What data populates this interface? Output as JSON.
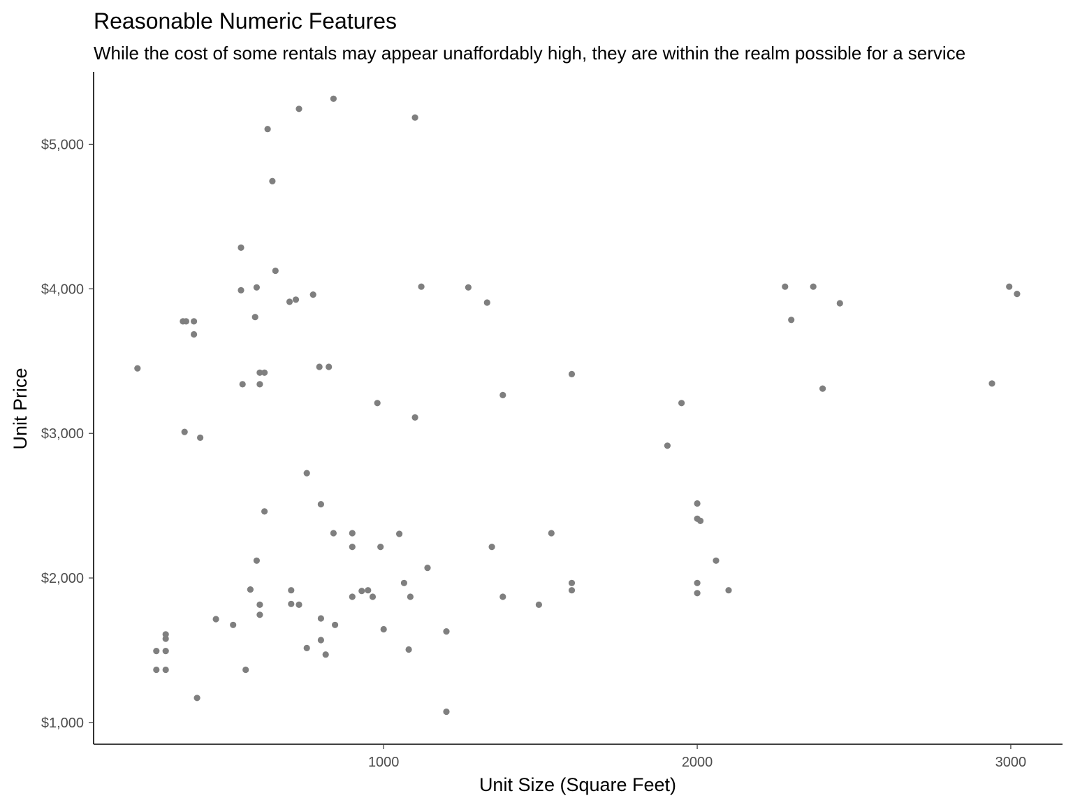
{
  "chart_data": {
    "type": "scatter",
    "title": "Reasonable Numeric Features",
    "subtitle": "While the cost of some rentals may appear unaffordably high, they are within the realm possible for a service",
    "xlabel": "Unit Size (Square Feet)",
    "ylabel": "Unit Price",
    "xlim": [
      75,
      3165
    ],
    "ylim": [
      850,
      5500
    ],
    "x_ticks": [
      1000,
      2000,
      3000
    ],
    "x_tick_labels": [
      "1000",
      "2000",
      "3000"
    ],
    "y_ticks": [
      1000,
      2000,
      3000,
      4000,
      5000
    ],
    "y_tick_labels": [
      "$1,000",
      "$2,000",
      "$3,000",
      "$4,000",
      "$5,000"
    ],
    "grid": false,
    "point_color": "#7f7f7f",
    "points": [
      {
        "x": 215,
        "y": 3450
      },
      {
        "x": 275,
        "y": 1495
      },
      {
        "x": 275,
        "y": 1365
      },
      {
        "x": 305,
        "y": 1610
      },
      {
        "x": 305,
        "y": 1580
      },
      {
        "x": 305,
        "y": 1495
      },
      {
        "x": 305,
        "y": 1365
      },
      {
        "x": 360,
        "y": 3775
      },
      {
        "x": 365,
        "y": 3010
      },
      {
        "x": 370,
        "y": 3775
      },
      {
        "x": 395,
        "y": 3775
      },
      {
        "x": 395,
        "y": 3685
      },
      {
        "x": 405,
        "y": 1170
      },
      {
        "x": 415,
        "y": 2970
      },
      {
        "x": 465,
        "y": 1715
      },
      {
        "x": 520,
        "y": 1675
      },
      {
        "x": 545,
        "y": 4285
      },
      {
        "x": 545,
        "y": 3990
      },
      {
        "x": 550,
        "y": 3340
      },
      {
        "x": 560,
        "y": 1365
      },
      {
        "x": 575,
        "y": 1920
      },
      {
        "x": 590,
        "y": 3805
      },
      {
        "x": 595,
        "y": 4010
      },
      {
        "x": 595,
        "y": 2120
      },
      {
        "x": 605,
        "y": 3420
      },
      {
        "x": 605,
        "y": 3340
      },
      {
        "x": 605,
        "y": 1815
      },
      {
        "x": 605,
        "y": 1745
      },
      {
        "x": 620,
        "y": 3420
      },
      {
        "x": 620,
        "y": 2460
      },
      {
        "x": 630,
        "y": 5105
      },
      {
        "x": 645,
        "y": 4745
      },
      {
        "x": 655,
        "y": 4125
      },
      {
        "x": 700,
        "y": 3910
      },
      {
        "x": 705,
        "y": 1915
      },
      {
        "x": 705,
        "y": 1820
      },
      {
        "x": 720,
        "y": 3925
      },
      {
        "x": 730,
        "y": 5245
      },
      {
        "x": 730,
        "y": 1815
      },
      {
        "x": 755,
        "y": 2725
      },
      {
        "x": 755,
        "y": 1515
      },
      {
        "x": 775,
        "y": 3960
      },
      {
        "x": 795,
        "y": 3460
      },
      {
        "x": 800,
        "y": 2510
      },
      {
        "x": 800,
        "y": 1720
      },
      {
        "x": 800,
        "y": 1570
      },
      {
        "x": 815,
        "y": 1470
      },
      {
        "x": 825,
        "y": 3460
      },
      {
        "x": 840,
        "y": 5315
      },
      {
        "x": 840,
        "y": 2310
      },
      {
        "x": 845,
        "y": 1675
      },
      {
        "x": 900,
        "y": 2310
      },
      {
        "x": 900,
        "y": 2215
      },
      {
        "x": 900,
        "y": 1870
      },
      {
        "x": 930,
        "y": 1910
      },
      {
        "x": 950,
        "y": 1915
      },
      {
        "x": 965,
        "y": 1870
      },
      {
        "x": 980,
        "y": 3210
      },
      {
        "x": 990,
        "y": 2215
      },
      {
        "x": 1000,
        "y": 1645
      },
      {
        "x": 1050,
        "y": 2305
      },
      {
        "x": 1065,
        "y": 1965
      },
      {
        "x": 1080,
        "y": 1505
      },
      {
        "x": 1085,
        "y": 1870
      },
      {
        "x": 1100,
        "y": 5185
      },
      {
        "x": 1100,
        "y": 3110
      },
      {
        "x": 1120,
        "y": 4015
      },
      {
        "x": 1140,
        "y": 2070
      },
      {
        "x": 1200,
        "y": 1630
      },
      {
        "x": 1200,
        "y": 1075
      },
      {
        "x": 1270,
        "y": 4010
      },
      {
        "x": 1330,
        "y": 3905
      },
      {
        "x": 1345,
        "y": 2215
      },
      {
        "x": 1380,
        "y": 3265
      },
      {
        "x": 1380,
        "y": 1870
      },
      {
        "x": 1495,
        "y": 1815
      },
      {
        "x": 1535,
        "y": 2310
      },
      {
        "x": 1600,
        "y": 3410
      },
      {
        "x": 1600,
        "y": 1965
      },
      {
        "x": 1600,
        "y": 1915
      },
      {
        "x": 1905,
        "y": 2915
      },
      {
        "x": 1950,
        "y": 3210
      },
      {
        "x": 2000,
        "y": 2515
      },
      {
        "x": 2000,
        "y": 2410
      },
      {
        "x": 2000,
        "y": 1965
      },
      {
        "x": 2000,
        "y": 1895
      },
      {
        "x": 2010,
        "y": 2395
      },
      {
        "x": 2060,
        "y": 2120
      },
      {
        "x": 2100,
        "y": 1915
      },
      {
        "x": 2280,
        "y": 4015
      },
      {
        "x": 2300,
        "y": 3785
      },
      {
        "x": 2370,
        "y": 4015
      },
      {
        "x": 2400,
        "y": 3310
      },
      {
        "x": 2455,
        "y": 3900
      },
      {
        "x": 2940,
        "y": 3345
      },
      {
        "x": 2995,
        "y": 4015
      },
      {
        "x": 3020,
        "y": 3965
      }
    ]
  }
}
